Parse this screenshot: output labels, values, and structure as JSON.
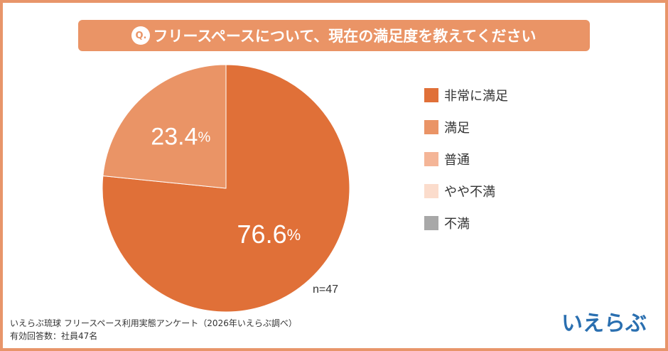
{
  "header": {
    "badge": "Q.",
    "question": "フリースペースについて、現在の満足度を教えてください"
  },
  "chart_data": {
    "type": "pie",
    "title": "フリースペースについて、現在の満足度を教えてください",
    "categories": [
      "非常に満足",
      "満足",
      "普通",
      "やや不満",
      "不満"
    ],
    "values": [
      76.6,
      23.4,
      0,
      0,
      0
    ],
    "colors": [
      "#e07038",
      "#ea9466",
      "#f4b597",
      "#fbdccc",
      "#a8a8a8"
    ],
    "legend_position": "right",
    "sample_size_label": "n=47"
  },
  "slices_text": {
    "big_value": "76.6",
    "small_value": "23.4",
    "unit": "%"
  },
  "footer": {
    "source_line1": "いえらぶ琉球 フリースペース利用実態アンケート（2026年いえらぶ調べ）",
    "source_line2": "有効回答数：社員47名"
  },
  "logo": {
    "text": "いえらぶ",
    "color": "#2a6fb0"
  }
}
